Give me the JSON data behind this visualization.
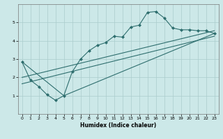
{
  "title": "",
  "xlabel": "Humidex (Indice chaleur)",
  "ylabel": "",
  "bg_color": "#cce8e8",
  "grid_color": "#aacccc",
  "line_color": "#2e6e6e",
  "xlim": [
    -0.5,
    23.5
  ],
  "ylim": [
    0,
    6
  ],
  "xticks": [
    0,
    1,
    2,
    3,
    4,
    5,
    6,
    7,
    8,
    9,
    10,
    11,
    12,
    13,
    14,
    15,
    16,
    17,
    18,
    19,
    20,
    21,
    22,
    23
  ],
  "yticks": [
    1,
    2,
    3,
    4,
    5
  ],
  "main_x": [
    0,
    1,
    2,
    3,
    4,
    5,
    6,
    7,
    8,
    9,
    10,
    11,
    12,
    13,
    14,
    15,
    16,
    17,
    18,
    19,
    20,
    21,
    22,
    23
  ],
  "main_y": [
    2.85,
    1.85,
    1.5,
    1.05,
    0.75,
    1.0,
    2.3,
    3.0,
    3.45,
    3.75,
    3.9,
    4.25,
    4.2,
    4.75,
    4.85,
    5.55,
    5.6,
    5.25,
    4.7,
    4.6,
    4.6,
    4.55,
    4.55,
    4.4
  ],
  "line2_x": [
    0,
    5,
    23
  ],
  "line2_y": [
    2.85,
    1.0,
    4.4
  ],
  "line3_x": [
    0,
    23
  ],
  "line3_y": [
    2.0,
    4.55
  ],
  "line4_x": [
    0,
    23
  ],
  "line4_y": [
    1.65,
    4.25
  ]
}
